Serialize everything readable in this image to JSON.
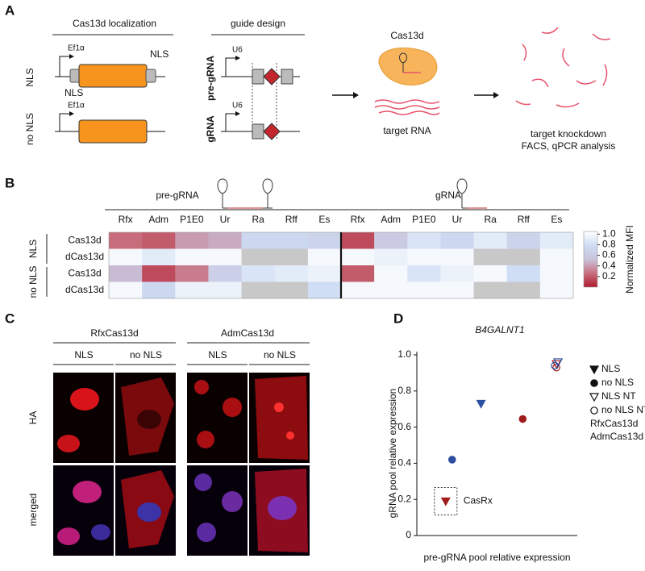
{
  "panels": {
    "a": "A",
    "b": "B",
    "c": "C",
    "d": "D"
  },
  "panel_a": {
    "localization_title": "Cas13d localization",
    "guide_title": "guide design",
    "promoter": "Ef1α",
    "nls": "NLS",
    "no_nls": "no NLS",
    "u6": "U6",
    "pre_grna": "pre-gRNA",
    "grna": "gRNA",
    "cas13d": "Cas13d",
    "target_rna": "target RNA",
    "readout": [
      "target knockdown",
      "FACS, qPCR analysis"
    ]
  },
  "panel_c": {
    "groups": [
      "RfxCas13d",
      "AdmCas13d"
    ],
    "columns": [
      "NLS",
      "no NLS"
    ],
    "rows": [
      "HA",
      "merged"
    ]
  },
  "chart_data": [
    {
      "type": "heatmap",
      "column_groups": [
        {
          "label": "pre-gRNA",
          "columns": [
            "Rfx",
            "Adm",
            "P1E0",
            "Ur",
            "Ra",
            "Rff",
            "Es"
          ]
        },
        {
          "label": "gRNA",
          "columns": [
            "Rfx",
            "Adm",
            "P1E0",
            "Ur",
            "Ra",
            "Rff",
            "Es"
          ]
        }
      ],
      "row_groups": [
        {
          "label": "NLS",
          "rows": [
            "Cas13d",
            "dCas13d"
          ]
        },
        {
          "label": "no NLS",
          "rows": [
            "Cas13d",
            "dCas13d"
          ]
        }
      ],
      "values": [
        [
          0.25,
          0.2,
          0.4,
          0.45,
          0.75,
          0.75,
          0.7,
          0.15,
          0.6,
          0.85,
          0.75,
          0.9,
          0.7,
          0.9
        ],
        [
          1.0,
          0.9,
          1.0,
          1.0,
          null,
          null,
          1.0,
          1.0,
          0.95,
          1.0,
          1.0,
          null,
          null,
          1.0
        ],
        [
          0.5,
          0.15,
          0.3,
          0.65,
          0.85,
          0.9,
          0.95,
          0.2,
          1.0,
          0.85,
          0.95,
          1.0,
          0.8,
          1.0
        ],
        [
          1.0,
          0.75,
          0.95,
          0.95,
          null,
          null,
          0.8,
          1.0,
          1.0,
          1.0,
          1.0,
          null,
          null,
          1.0
        ]
      ],
      "missing_color": "#c8c8c8",
      "colorbar": {
        "label": "Normalized MFI",
        "lim": [
          0,
          1.05
        ],
        "ticks": [
          0.2,
          0.4,
          0.6,
          0.8,
          {
            "value": 1,
            "label": "1.0"
          }
        ],
        "colors": [
          "#b01a2d",
          "#c8707f",
          "#c9c3dc",
          "#cddcf3",
          "#ffffff"
        ]
      }
    },
    {
      "type": "scatter",
      "title": "B4GALNT1",
      "xlabel": "pre-gRNA pool relative expression",
      "ylabel": "gRNA pool relative expression",
      "xlim": [
        0,
        1
      ],
      "ylim": [
        0,
        1
      ],
      "yticks": [
        0,
        0.2,
        0.4,
        0.6,
        0.8,
        {
          "value": 1,
          "label": "1.0"
        }
      ],
      "markers": [
        {
          "label": "NLS",
          "shape": "triangle-down",
          "filled": true
        },
        {
          "label": "no NLS",
          "shape": "circle",
          "filled": true
        },
        {
          "label": "NLS NT",
          "shape": "triangle-down",
          "filled": false
        },
        {
          "label": "no NLS NT",
          "shape": "circle",
          "filled": false
        }
      ],
      "series": [
        {
          "name": "RfxCas13d",
          "color": "#a01c1c",
          "x": [
            0.18,
            0.66,
            0.87,
            0.87
          ],
          "y": [
            0.19,
            0.645,
            0.95,
            0.93
          ]
        },
        {
          "name": "AdmCas13d",
          "color": "#2b4ea0",
          "x": [
            0.4,
            0.22,
            0.88,
            0.86
          ],
          "y": [
            0.73,
            0.42,
            0.96,
            0.94
          ]
        }
      ],
      "annotation": "CasRx"
    }
  ]
}
